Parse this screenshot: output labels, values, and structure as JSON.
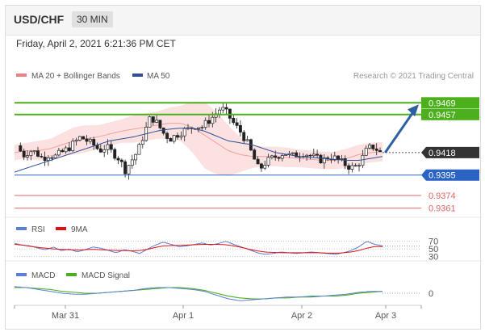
{
  "header": {
    "pair": "USD/CHF",
    "timeframe": "30 MIN"
  },
  "date_line": "Friday, April 2, 2021 6:21:36 PM CET",
  "colors": {
    "green": "#4caf1c",
    "blue": "#2a63c4",
    "red": "#e06666",
    "candle": "#222222",
    "band": "#fbd4d4",
    "ma50": "#2d4f9e",
    "arrow": "#2e5fa3",
    "rsi": "#5b7fd6",
    "nine_ma": "#e01010",
    "macd": "#5b7fd6",
    "signal": "#4caf1c"
  },
  "chart_data": [
    {
      "type": "candlestick",
      "legend": [
        "MA 20 + Bollinger Bands",
        "MA 50"
      ],
      "credit": "Research © 2021 Trading Central",
      "x_ticks": [
        "Mar 31",
        "Apr 1",
        "Apr 2",
        "Apr 3"
      ],
      "ylim": [
        0.9355,
        0.9475
      ],
      "levels": [
        {
          "value": 0.9469,
          "label": "0.9469",
          "style": "green-thick"
        },
        {
          "value": 0.9457,
          "label": "0.9457",
          "style": "green-thick"
        },
        {
          "value": 0.9418,
          "label": "0.9418",
          "style": "current"
        },
        {
          "value": 0.9395,
          "label": "0.9395",
          "style": "blue"
        },
        {
          "value": 0.9374,
          "label": "0.9374",
          "style": "red"
        },
        {
          "value": 0.9361,
          "label": "0.9361",
          "style": "red"
        }
      ],
      "arrow": {
        "from": 0.9418,
        "to": 0.9469
      },
      "price_path": [
        0.9425,
        0.9415,
        0.942,
        0.9418,
        0.9412,
        0.9416,
        0.9414,
        0.9418,
        0.9422,
        0.9428,
        0.9434,
        0.943,
        0.9426,
        0.942,
        0.9424,
        0.9418,
        0.9412,
        0.94,
        0.941,
        0.942,
        0.9438,
        0.9455,
        0.9448,
        0.9438,
        0.9432,
        0.9436,
        0.944,
        0.9442,
        0.9446,
        0.9444,
        0.945,
        0.9456,
        0.9464,
        0.9458,
        0.9448,
        0.944,
        0.943,
        0.9415,
        0.94,
        0.9408,
        0.9412,
        0.9415,
        0.9418,
        0.9414,
        0.9416,
        0.9418,
        0.9415,
        0.9412,
        0.941,
        0.9414,
        0.9412,
        0.9408,
        0.9404,
        0.9402,
        0.941,
        0.9422,
        0.9424,
        0.9418
      ],
      "ma50_path": [
        0.9398,
        0.9402,
        0.9406,
        0.941,
        0.9414,
        0.9418,
        0.9422,
        0.9426,
        0.943,
        0.9432,
        0.9434,
        0.9437,
        0.944,
        0.9442,
        0.9443,
        0.9443,
        0.944,
        0.9435,
        0.943,
        0.9428,
        0.9426,
        0.9422,
        0.9418,
        0.9416,
        0.9414,
        0.9413,
        0.9412,
        0.9411,
        0.941,
        0.941,
        0.9412,
        0.9414
      ],
      "ma20_path": [
        0.9418,
        0.942,
        0.942,
        0.9422,
        0.9426,
        0.943,
        0.9432,
        0.9434,
        0.9437,
        0.944,
        0.9442,
        0.9444,
        0.9446,
        0.9448,
        0.9448,
        0.9444,
        0.9436,
        0.9428,
        0.942,
        0.9416,
        0.9414,
        0.9414,
        0.9414,
        0.9413,
        0.9412,
        0.9411,
        0.941,
        0.941,
        0.9412,
        0.9416,
        0.9418,
        0.9419
      ],
      "band_width": [
        0.0008,
        0.0008,
        0.001,
        0.001,
        0.0012,
        0.0014,
        0.0014,
        0.0012,
        0.0012,
        0.0012,
        0.0014,
        0.0014,
        0.0014,
        0.0016,
        0.0018,
        0.0026,
        0.0034,
        0.0032,
        0.0026,
        0.0018,
        0.0012,
        0.001,
        0.001,
        0.001,
        0.0009,
        0.0009,
        0.0009,
        0.0009,
        0.001,
        0.001,
        0.001,
        0.001
      ]
    },
    {
      "type": "line",
      "legend": [
        "RSI",
        "9MA"
      ],
      "levels": [
        70,
        50,
        30
      ],
      "ylim": [
        25,
        80
      ],
      "rsi_path": [
        65,
        60,
        58,
        52,
        48,
        55,
        45,
        50,
        42,
        48,
        55,
        52,
        46,
        40,
        48,
        44,
        38,
        50,
        60,
        68,
        62,
        56,
        58,
        62,
        66,
        60,
        64,
        70,
        62,
        55,
        48,
        40,
        36,
        38,
        42,
        40,
        38,
        40,
        42,
        40,
        38,
        36,
        40,
        46,
        56,
        70,
        62,
        58
      ],
      "nine_path": [
        62,
        60,
        57,
        54,
        52,
        50,
        49,
        48,
        47,
        48,
        49,
        48,
        47,
        46,
        46,
        45,
        46,
        49,
        54,
        58,
        59,
        59,
        60,
        61,
        62,
        62,
        62,
        61,
        58,
        54,
        49,
        45,
        42,
        41,
        40,
        40,
        40,
        40,
        40,
        40,
        39,
        39,
        40,
        42,
        46,
        52,
        56,
        56
      ]
    },
    {
      "type": "line",
      "legend": [
        "MACD",
        "MACD Signal"
      ],
      "levels": [
        0
      ],
      "ylim": [
        -0.0012,
        0.0012
      ],
      "macd_path": [
        0.0007,
        0.0006,
        0.0004,
        0.0002,
        0.0,
        -0.0001,
        -0.0001,
        0.0,
        0.0001,
        0.0002,
        0.0003,
        0.0005,
        0.0006,
        0.0006,
        0.0005,
        0.0004,
        0.0002,
        -0.0002,
        -0.0006,
        -0.0008,
        -0.0007,
        -0.0006,
        -0.0005,
        -0.0004,
        -0.0004,
        -0.0003,
        -0.0003,
        -0.0002,
        -0.0001,
        0.0001,
        0.0002,
        0.0002
      ],
      "signal_path": [
        0.0006,
        0.0006,
        0.0005,
        0.0004,
        0.0002,
        0.0001,
        0.0,
        0.0,
        0.0001,
        0.0002,
        0.0003,
        0.0004,
        0.0005,
        0.0006,
        0.0006,
        0.0005,
        0.0003,
        0.0,
        -0.0003,
        -0.0005,
        -0.0006,
        -0.0006,
        -0.0005,
        -0.0005,
        -0.0004,
        -0.0004,
        -0.0003,
        -0.0003,
        -0.0002,
        0.0,
        0.0001,
        0.0002
      ]
    }
  ]
}
